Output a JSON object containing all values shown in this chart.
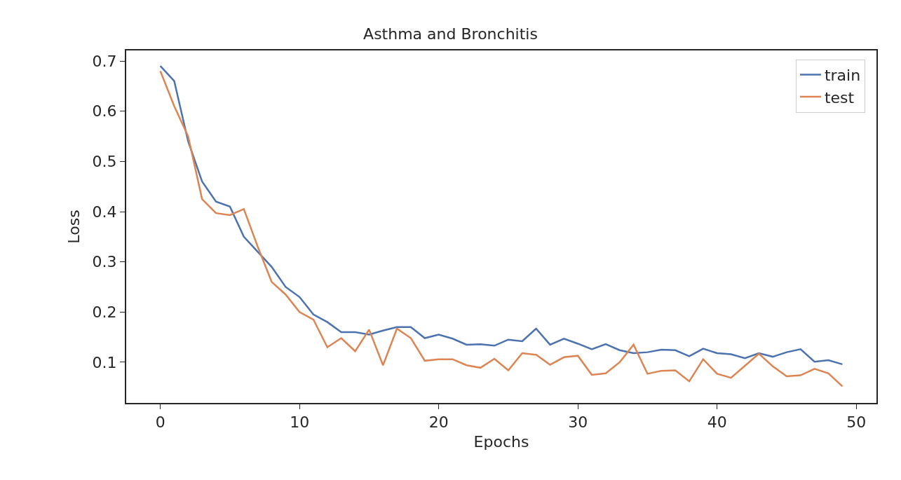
{
  "chart_data": {
    "type": "line",
    "title": "Asthma and Bronchitis",
    "xlabel": "Epochs",
    "ylabel": "Loss",
    "x": [
      0,
      1,
      2,
      3,
      4,
      5,
      6,
      7,
      8,
      9,
      10,
      11,
      12,
      13,
      14,
      15,
      16,
      17,
      18,
      19,
      20,
      21,
      22,
      23,
      24,
      25,
      26,
      27,
      28,
      29,
      30,
      31,
      32,
      33,
      34,
      35,
      36,
      37,
      38,
      39,
      40,
      41,
      42,
      43,
      44,
      45,
      46,
      47,
      48,
      49
    ],
    "series": [
      {
        "name": "train",
        "color": "#4c72b0",
        "values": [
          0.69,
          0.66,
          0.54,
          0.46,
          0.42,
          0.41,
          0.35,
          0.32,
          0.29,
          0.25,
          0.23,
          0.195,
          0.18,
          0.16,
          0.16,
          0.155,
          0.163,
          0.17,
          0.17,
          0.148,
          0.155,
          0.147,
          0.135,
          0.136,
          0.133,
          0.145,
          0.142,
          0.167,
          0.135,
          0.147,
          0.137,
          0.126,
          0.136,
          0.124,
          0.118,
          0.12,
          0.125,
          0.124,
          0.112,
          0.127,
          0.118,
          0.116,
          0.108,
          0.118,
          0.111,
          0.12,
          0.126,
          0.101,
          0.104,
          0.096
        ]
      },
      {
        "name": "test",
        "color": "#dd8452",
        "values": [
          0.68,
          0.61,
          0.55,
          0.425,
          0.397,
          0.393,
          0.405,
          0.33,
          0.26,
          0.235,
          0.2,
          0.185,
          0.13,
          0.148,
          0.122,
          0.165,
          0.094,
          0.167,
          0.148,
          0.103,
          0.106,
          0.106,
          0.094,
          0.089,
          0.107,
          0.084,
          0.118,
          0.115,
          0.095,
          0.11,
          0.113,
          0.075,
          0.078,
          0.1,
          0.135,
          0.077,
          0.083,
          0.084,
          0.062,
          0.106,
          0.077,
          0.069,
          0.093,
          0.117,
          0.092,
          0.072,
          0.074,
          0.087,
          0.078,
          0.052
        ]
      }
    ],
    "xlim": [
      -2.45,
      51.45
    ],
    "xticks": [
      0,
      10,
      20,
      30,
      40,
      50
    ],
    "ylim": [
      0.019,
      0.721
    ],
    "yticks": [
      0.1,
      0.2,
      0.3,
      0.4,
      0.5,
      0.6,
      0.7
    ],
    "grid": false,
    "legend": "top right",
    "marker": "none",
    "line_style": "solid"
  }
}
